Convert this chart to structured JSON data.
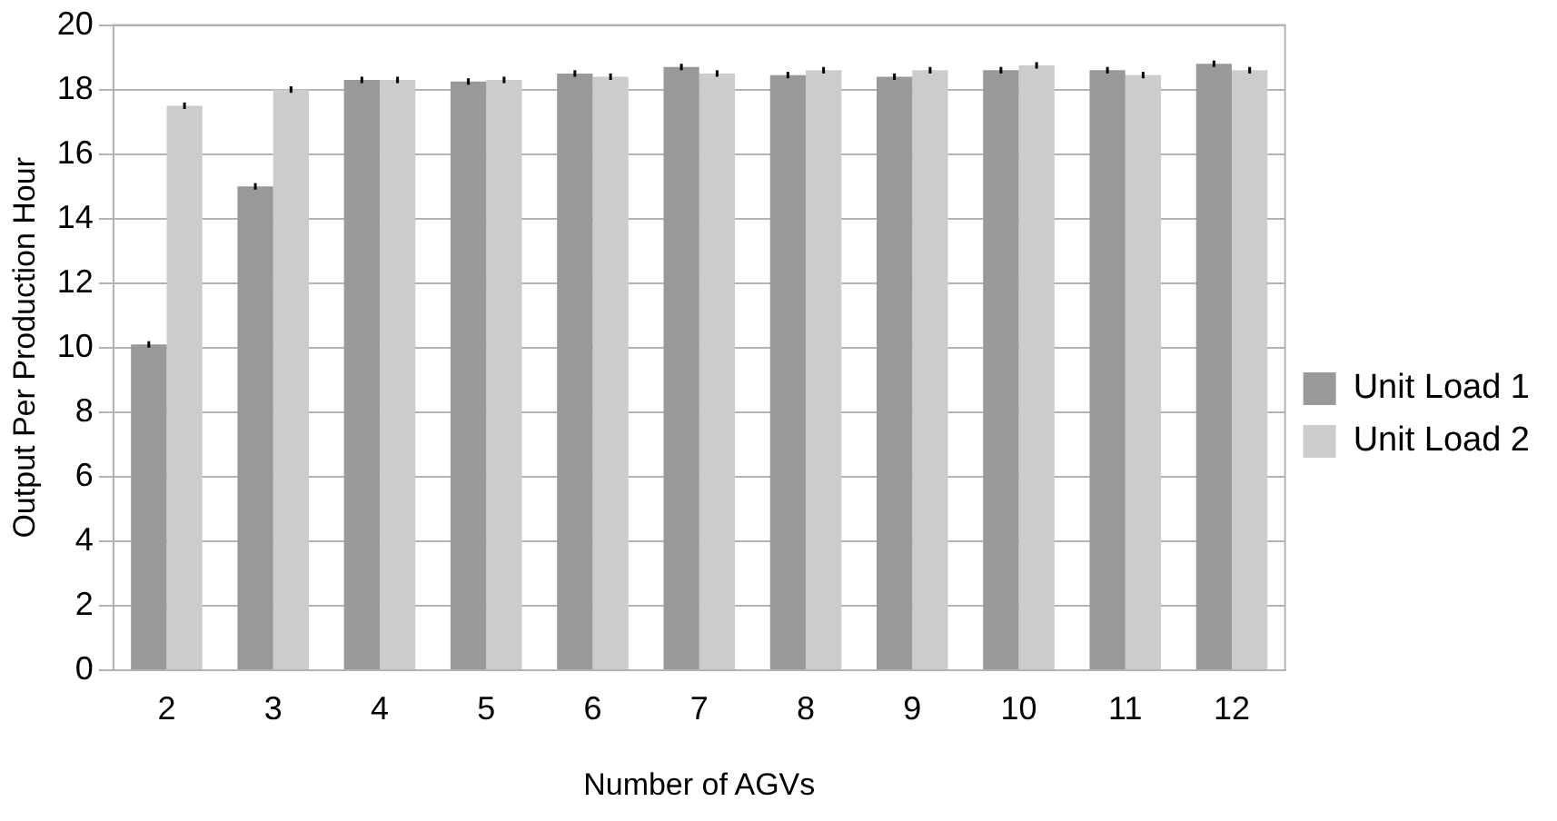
{
  "chart_data": {
    "type": "bar",
    "xlabel": "Number of AGVs",
    "ylabel": "Output Per Production Hour",
    "categories": [
      "2",
      "3",
      "4",
      "5",
      "6",
      "7",
      "8",
      "9",
      "10",
      "11",
      "12"
    ],
    "series": [
      {
        "name": "Unit Load 1",
        "color": "#999999",
        "values": [
          10.1,
          15.0,
          18.3,
          18.25,
          18.5,
          18.7,
          18.45,
          18.4,
          18.6,
          18.6,
          18.8
        ],
        "errors": [
          0.1,
          0.1,
          0.1,
          0.1,
          0.1,
          0.1,
          0.1,
          0.1,
          0.1,
          0.1,
          0.1
        ]
      },
      {
        "name": "Unit Load 2",
        "color": "#cccccc",
        "values": [
          17.5,
          18.0,
          18.3,
          18.3,
          18.4,
          18.5,
          18.6,
          18.6,
          18.75,
          18.45,
          18.6
        ],
        "errors": [
          0.1,
          0.1,
          0.1,
          0.1,
          0.1,
          0.1,
          0.1,
          0.1,
          0.1,
          0.1,
          0.1
        ]
      }
    ],
    "ylim": [
      0,
      20
    ],
    "yticks": [
      0,
      2,
      4,
      6,
      8,
      10,
      12,
      14,
      16,
      18,
      20
    ],
    "grid": "y",
    "legend": "right"
  }
}
